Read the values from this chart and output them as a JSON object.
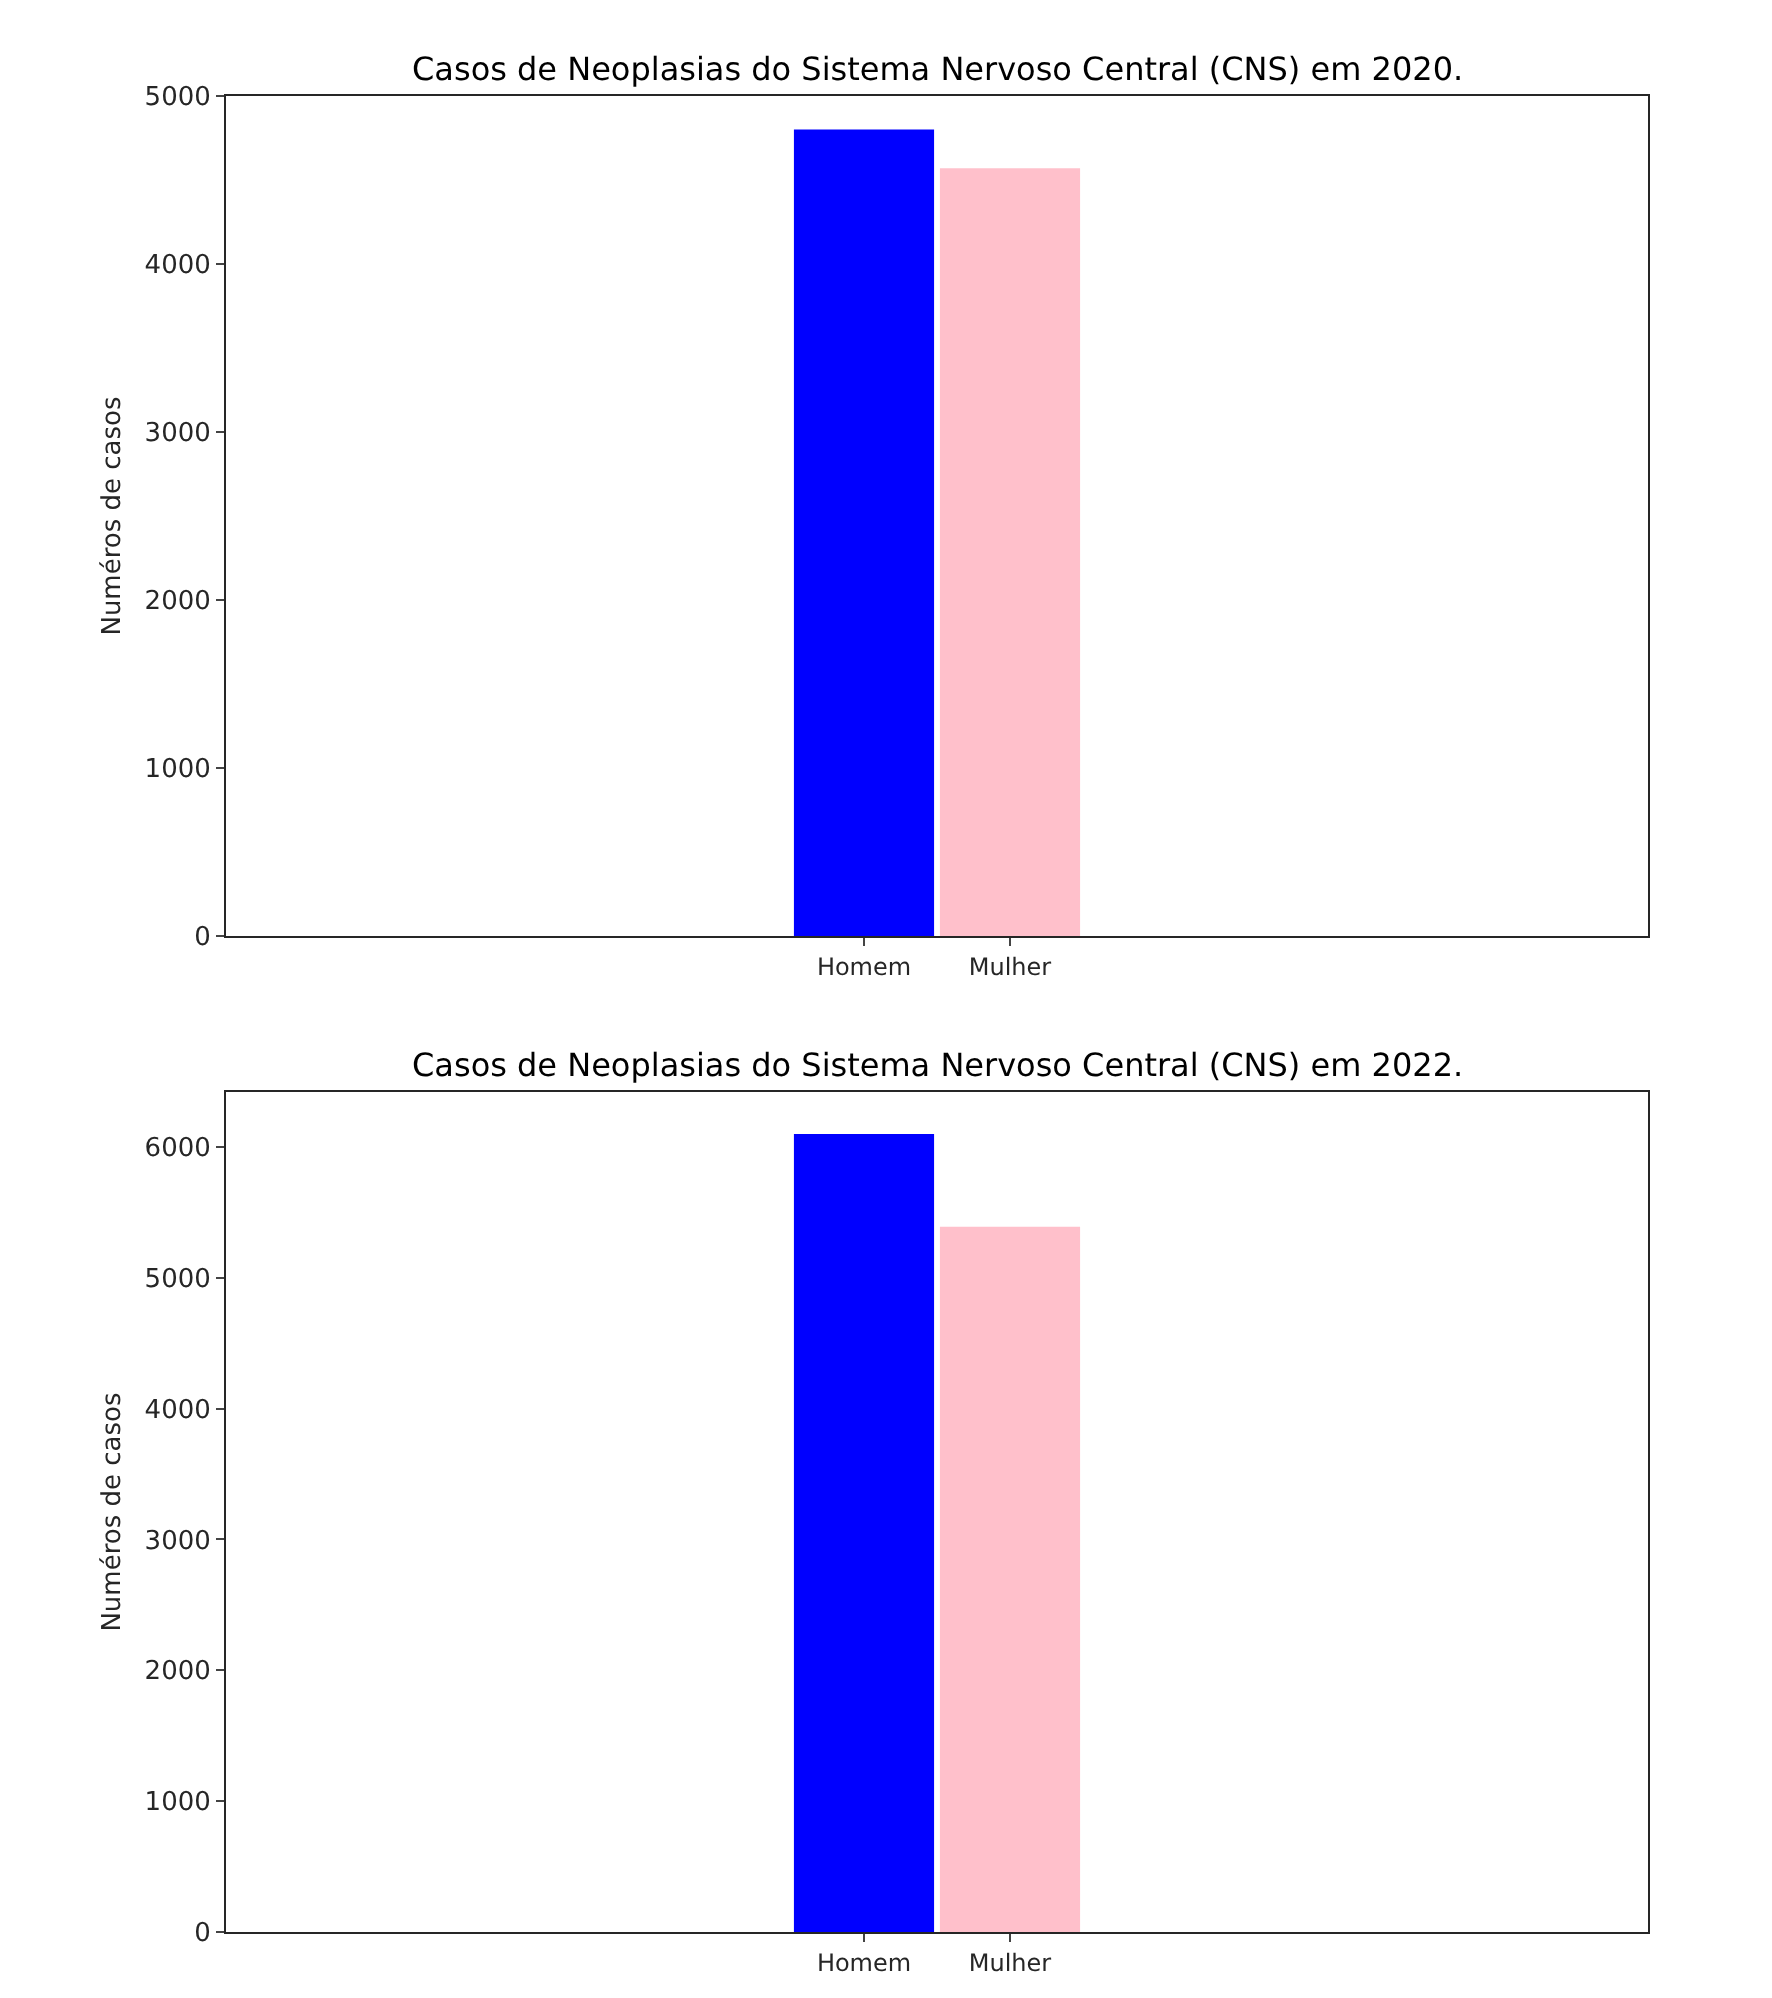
{
  "chart_data": [
    {
      "type": "bar",
      "title": "Casos de Neoplasias do Sistema Nervoso Central (CNS) em 2020.",
      "ylabel": "Numéros de casos",
      "categories": [
        "Homem",
        "Mulher"
      ],
      "values": [
        4800,
        4570
      ],
      "colors": [
        "#0000ff",
        "#ffc0cb"
      ],
      "ylim": [
        0,
        5000
      ],
      "yticks": [
        0,
        1000,
        2000,
        3000,
        4000,
        5000
      ]
    },
    {
      "type": "bar",
      "title": "Casos de Neoplasias do Sistema Nervoso Central (CNS) em 2022.",
      "ylabel": "Numéros de casos",
      "categories": [
        "Homem",
        "Mulher"
      ],
      "values": [
        6100,
        5390
      ],
      "colors": [
        "#0000ff",
        "#ffc0cb"
      ],
      "ylim": [
        0,
        6420
      ],
      "yticks": [
        0,
        1000,
        2000,
        3000,
        4000,
        5000,
        6000
      ]
    }
  ]
}
